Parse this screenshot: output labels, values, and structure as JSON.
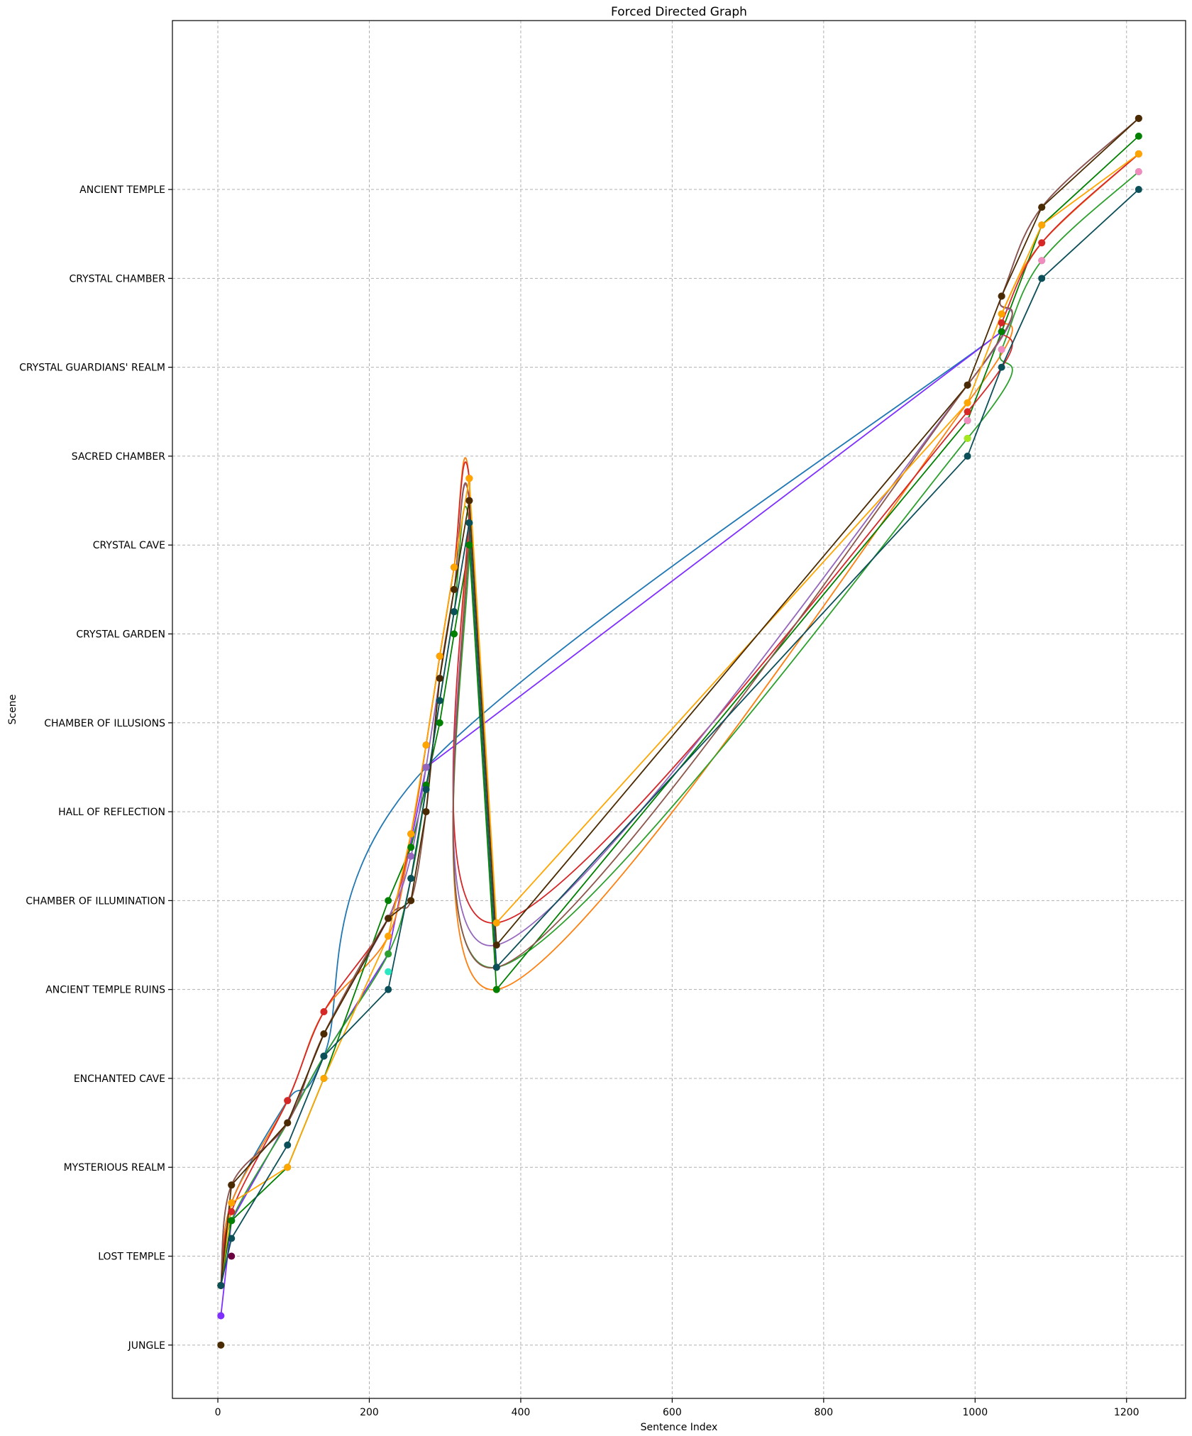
{
  "chart_data": {
    "type": "line",
    "title": "Forced Directed Graph",
    "xlabel": "Sentence Index",
    "ylabel": "Scene",
    "xlim": [
      -60,
      1278
    ],
    "ylim": [
      -0.6,
      14.9
    ],
    "grid": true,
    "x_ticks": [
      0,
      200,
      400,
      600,
      800,
      1000,
      1200
    ],
    "x_tick_labels": [
      "0",
      "200",
      "400",
      "600",
      "800",
      "1000",
      "1200"
    ],
    "y_categories": [
      "JUNGLE",
      "LOST TEMPLE",
      "MYSTERIOUS REALM",
      "ENCHANTED CAVE",
      "ANCIENT TEMPLE RUINS",
      "CHAMBER OF ILLUMINATION",
      "HALL OF REFLECTION",
      "CHAMBER OF ILLUSIONS",
      "CRYSTAL GARDEN",
      "CRYSTAL CAVE",
      "SACRED CHAMBER",
      "CRYSTAL GUARDIANS' REALM",
      "CRYSTAL CHAMBER",
      "ANCIENT TEMPLE"
    ],
    "series": [
      {
        "name": "s1",
        "color": "#1f77b4",
        "smooth": true,
        "x": [
          4,
          18,
          92,
          140,
          275,
          1035
        ],
        "y": [
          0.67,
          1.6,
          2.75,
          3.25,
          6.5,
          11.4
        ]
      },
      {
        "name": "s2",
        "color": "#7f2fff",
        "smooth": false,
        "x": [
          4,
          18,
          140,
          225,
          275,
          1035
        ],
        "y": [
          0.33,
          1.4,
          3.25,
          4.4,
          6.5,
          11.4
        ]
      },
      {
        "name": "s3",
        "color": "#ff7f0e",
        "smooth": true,
        "x": [
          4,
          18,
          92,
          140,
          225,
          255,
          275,
          293,
          312,
          332,
          368,
          990,
          1035,
          1088,
          1216
        ],
        "y": [
          0.67,
          1.6,
          2.75,
          3.75,
          4.6,
          5.75,
          6.75,
          7.75,
          8.75,
          9.75,
          4.0,
          10.6,
          11.6,
          12.4,
          13.4
        ]
      },
      {
        "name": "s4",
        "color": "#2ca02c",
        "smooth": true,
        "x": [
          4,
          18,
          92,
          140,
          225,
          255,
          275,
          293,
          312,
          332,
          368,
          990,
          1035,
          1088,
          1216
        ],
        "y": [
          0.67,
          1.4,
          2.5,
          3.25,
          4.4,
          5.25,
          6.25,
          7.25,
          8.25,
          9.25,
          4.25,
          10.2,
          11.2,
          12.2,
          13.2
        ]
      },
      {
        "name": "s5",
        "color": "#008000",
        "smooth": false,
        "x": [
          4,
          18,
          92,
          140,
          225,
          255,
          275,
          293,
          312,
          332,
          368,
          990,
          1035,
          1088,
          1216
        ],
        "y": [
          0.67,
          1.4,
          2.0,
          3.0,
          5.0,
          5.6,
          6.3,
          7.0,
          8.0,
          9.0,
          4.0,
          10.4,
          11.4,
          12.6,
          13.6
        ]
      },
      {
        "name": "s6",
        "color": "#d62728",
        "smooth": true,
        "x": [
          4,
          18,
          92,
          140,
          225,
          255,
          275,
          293,
          312,
          332,
          368,
          990,
          1035,
          1088,
          1216
        ],
        "y": [
          0.67,
          1.5,
          2.75,
          3.75,
          4.8,
          5.75,
          6.75,
          7.75,
          8.75,
          9.75,
          4.75,
          10.5,
          11.5,
          12.4,
          13.4
        ]
      },
      {
        "name": "s7",
        "color": "#9467bd",
        "smooth": true,
        "x": [
          4,
          18,
          92,
          140,
          225,
          255,
          275,
          293,
          312,
          332,
          368,
          990,
          1035,
          1088,
          1216
        ],
        "y": [
          0.67,
          1.8,
          2.5,
          3.5,
          4.8,
          5.5,
          6.5,
          7.5,
          8.5,
          9.5,
          4.5,
          10.8,
          11.8,
          12.8,
          13.8
        ]
      },
      {
        "name": "s8",
        "color": "#8c564b",
        "smooth": true,
        "x": [
          4,
          18,
          92,
          140,
          225,
          255,
          275,
          293,
          312,
          332,
          368,
          990,
          1035,
          1088,
          1216
        ],
        "y": [
          0.67,
          1.8,
          2.5,
          3.5,
          4.8,
          5.0,
          6.0,
          7.5,
          8.5,
          9.5,
          4.25,
          10.8,
          11.8,
          12.8,
          13.8
        ]
      },
      {
        "name": "s9",
        "color": "#ffa500",
        "smooth": false,
        "x": [
          4,
          18,
          92,
          140,
          225,
          255,
          275,
          293,
          312,
          332,
          368,
          990,
          1035,
          1088,
          1216
        ],
        "y": [
          0.67,
          1.6,
          2.0,
          3.0,
          4.6,
          5.75,
          6.75,
          7.75,
          8.75,
          9.75,
          4.75,
          10.6,
          11.6,
          12.6,
          13.4
        ]
      },
      {
        "name": "s10",
        "color": "#4a2a00",
        "smooth": false,
        "x": [
          4,
          18,
          92,
          140,
          225,
          255,
          275,
          293,
          312,
          332,
          368,
          990,
          1035,
          1088,
          1216
        ],
        "y": [
          0.67,
          1.8,
          2.5,
          3.5,
          4.8,
          5.0,
          6.0,
          7.5,
          8.5,
          9.5,
          4.5,
          10.8,
          11.8,
          12.8,
          13.8
        ]
      },
      {
        "name": "s11",
        "color": "#0b4f59",
        "smooth": false,
        "x": [
          4,
          18,
          92,
          140,
          225,
          255,
          275,
          293,
          312,
          332,
          368,
          990,
          1035,
          1088,
          1216
        ],
        "y": [
          0.67,
          1.2,
          2.25,
          3.25,
          4.0,
          5.25,
          6.25,
          7.25,
          8.25,
          9.25,
          4.25,
          10.0,
          11.0,
          12.0,
          13.0
        ]
      }
    ],
    "extra_points": [
      {
        "x": 4,
        "y": 0.0,
        "color": "#4a2a00"
      },
      {
        "x": 4,
        "y": 0.33,
        "color": "#7f2fff"
      },
      {
        "x": 18,
        "y": 1.0,
        "color": "#6a0040"
      },
      {
        "x": 225,
        "y": 4.2,
        "color": "#2ce8c0"
      },
      {
        "x": 990,
        "y": 10.2,
        "color": "#a6e81f"
      },
      {
        "x": 990,
        "y": 10.4,
        "color": "#f08cc0"
      },
      {
        "x": 1035,
        "y": 11.2,
        "color": "#f08cc0"
      },
      {
        "x": 1088,
        "y": 12.2,
        "color": "#f08cc0"
      },
      {
        "x": 1216,
        "y": 13.2,
        "color": "#f08cc0"
      }
    ]
  }
}
